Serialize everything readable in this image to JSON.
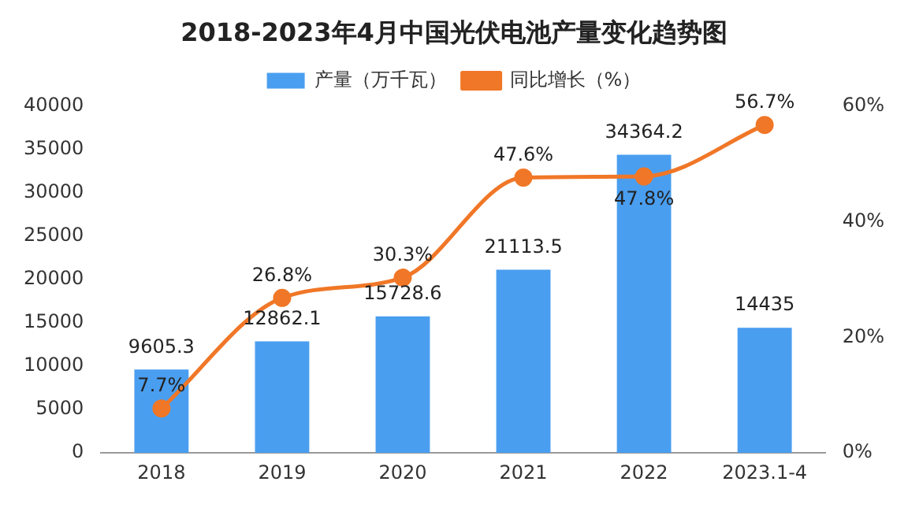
{
  "chart_data": {
    "type": "bar",
    "title": "2018-2023年4月中国光伏电池产量变化趋势图",
    "categories": [
      "2018",
      "2019",
      "2020",
      "2021",
      "2022",
      "2023.1-4"
    ],
    "series": [
      {
        "name": "产量（万千瓦）",
        "color": "#4a9ef0",
        "values": [
          9605.3,
          12862.1,
          15728.6,
          21113.5,
          34364.2,
          14435
        ],
        "value_labels": [
          "9605.3",
          "12862.1",
          "15728.6",
          "21113.5",
          "34364.2",
          "14435"
        ]
      },
      {
        "name": "同比增长（%）",
        "type": "line",
        "axis": "y2",
        "color": "#f07727",
        "marker": "circle",
        "values": [
          7.7,
          26.8,
          30.3,
          47.6,
          47.8,
          56.7
        ],
        "value_labels": [
          "7.7%",
          "26.8%",
          "30.3%",
          "47.6%",
          "47.8%",
          "56.7%"
        ]
      }
    ],
    "ylim": [
      0,
      40000
    ],
    "yticks": [
      0,
      5000,
      10000,
      15000,
      20000,
      25000,
      30000,
      35000,
      40000
    ],
    "y2lim": [
      0,
      60
    ],
    "y2ticks": [
      {
        "value": 0,
        "label": "0%"
      },
      {
        "value": 20,
        "label": "20%"
      },
      {
        "value": 40,
        "label": "40%"
      },
      {
        "value": 60,
        "label": "60%"
      }
    ],
    "grid": false,
    "legend": "top"
  }
}
